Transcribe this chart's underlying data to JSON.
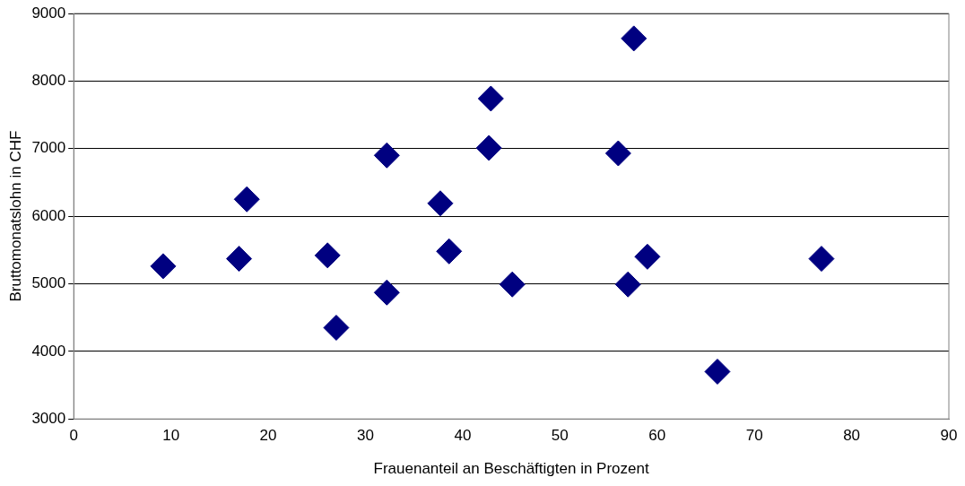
{
  "chart_data": {
    "type": "scatter",
    "xlabel": "Frauenanteil an Beschäftigten in Prozent",
    "ylabel": "Bruttomonatslohn in CHF",
    "x": [
      9.2,
      17,
      17.8,
      26.1,
      27,
      32.2,
      32.2,
      37.7,
      38.6,
      42.9,
      42.7,
      45.1,
      56,
      57.6,
      57,
      59,
      66.2,
      76.9
    ],
    "values": [
      5260,
      5370,
      6250,
      5420,
      4350,
      6900,
      4870,
      6190,
      5480,
      7740,
      7010,
      4990,
      6930,
      8630,
      4990,
      5400,
      3700,
      5370
    ],
    "color": "#000080",
    "marker": "diamond",
    "xlim": [
      0,
      90
    ],
    "xticks": [
      0,
      10,
      20,
      30,
      40,
      50,
      60,
      70,
      80,
      90
    ],
    "ylim": [
      3000,
      9000
    ],
    "yticks": [
      3000,
      4000,
      5000,
      6000,
      7000,
      8000,
      9000
    ],
    "grid": "y",
    "legend": false
  }
}
